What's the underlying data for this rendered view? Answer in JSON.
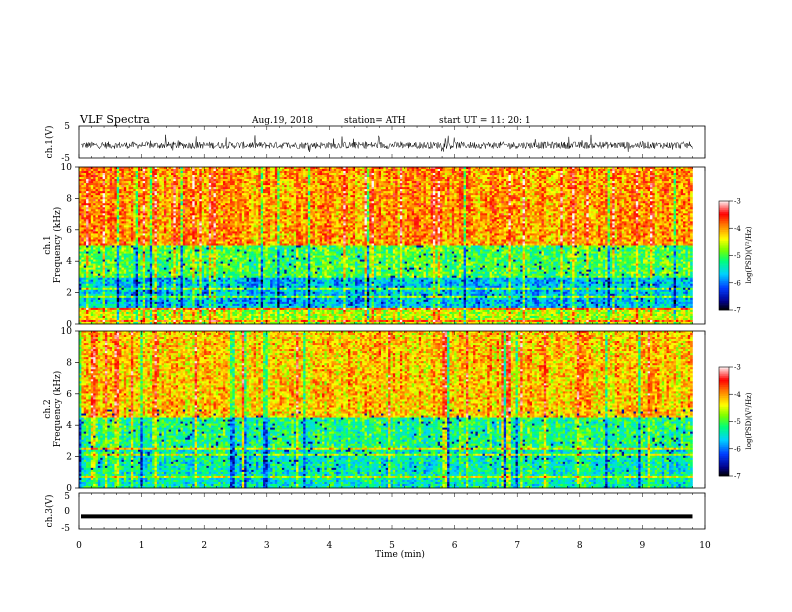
{
  "header": {
    "title": "VLF  Spectra",
    "date": "Aug.19, 2018",
    "station": "station= ATH",
    "start": "start  UT  =    11: 20: 1"
  },
  "chart_data": [
    {
      "id": "ch1-waveform",
      "type": "line",
      "ylabel": "ch.1(V)",
      "ylim": [
        -5,
        5
      ],
      "yticks": [
        "5",
        "-5"
      ],
      "xlim": [
        0,
        10
      ],
      "series": [
        {
          "label": "ch.1",
          "note": "noisy waveform, mostly between about -2 and 0 V with spikes to about +1.5 V, recorded from 0 to about 9.8 min"
        }
      ]
    },
    {
      "id": "ch1-spectrogram",
      "type": "heatmap",
      "ylabel": "ch.1\nFrequency  (kHz)",
      "ylim": [
        0,
        10
      ],
      "yticks": [
        "0",
        "2",
        "4",
        "6",
        "8",
        "10"
      ],
      "xlim": [
        0,
        10
      ],
      "data_end_min": 9.8,
      "bands": [
        {
          "from_khz": 5.0,
          "to_khz": 10.0,
          "log_psd": -4.0
        },
        {
          "from_khz": 3.0,
          "to_khz": 5.0,
          "log_psd": -5.0
        },
        {
          "from_khz": 1.0,
          "to_khz": 3.0,
          "log_psd": -5.7
        },
        {
          "from_khz": 0.0,
          "to_khz": 1.0,
          "log_psd": -4.6
        }
      ],
      "colorbar": {
        "label": "log(PSD)(V²/Hz)",
        "min": -7,
        "max": -3,
        "ticks": [
          "-3",
          "-4",
          "-5",
          "-6",
          "-7"
        ]
      }
    },
    {
      "id": "ch2-spectrogram",
      "type": "heatmap",
      "ylabel": "ch.2\nFrequency  (kHz)",
      "ylim": [
        0,
        10
      ],
      "yticks": [
        "0",
        "2",
        "4",
        "6",
        "8",
        "10"
      ],
      "xlim": [
        0,
        10
      ],
      "data_end_min": 9.8,
      "bands": [
        {
          "from_khz": 4.5,
          "to_khz": 10.0,
          "log_psd": -4.2
        },
        {
          "from_khz": 2.5,
          "to_khz": 4.5,
          "log_psd": -5.2
        },
        {
          "from_khz": 0.0,
          "to_khz": 2.5,
          "log_psd": -5.4
        }
      ],
      "colorbar": {
        "label": "log(PSD)(V²/Hz)",
        "min": -7,
        "max": -3,
        "ticks": [
          "-3",
          "-4",
          "-5",
          "-6",
          "-7"
        ]
      }
    },
    {
      "id": "ch3-waveform",
      "type": "line",
      "ylabel": "ch.3(V)",
      "ylim": [
        -5,
        5
      ],
      "yticks": [
        "5",
        "0",
        "-5"
      ],
      "xlim": [
        0,
        10
      ],
      "xticks": [
        "0",
        "1",
        "2",
        "3",
        "4",
        "5",
        "6",
        "7",
        "8",
        "9",
        "10"
      ],
      "xlabel": "Time  (min)",
      "series": [
        {
          "label": "ch.3",
          "value_v": -1.5,
          "note": "flat thick trace from 0 to about 9.8 min"
        }
      ]
    }
  ]
}
